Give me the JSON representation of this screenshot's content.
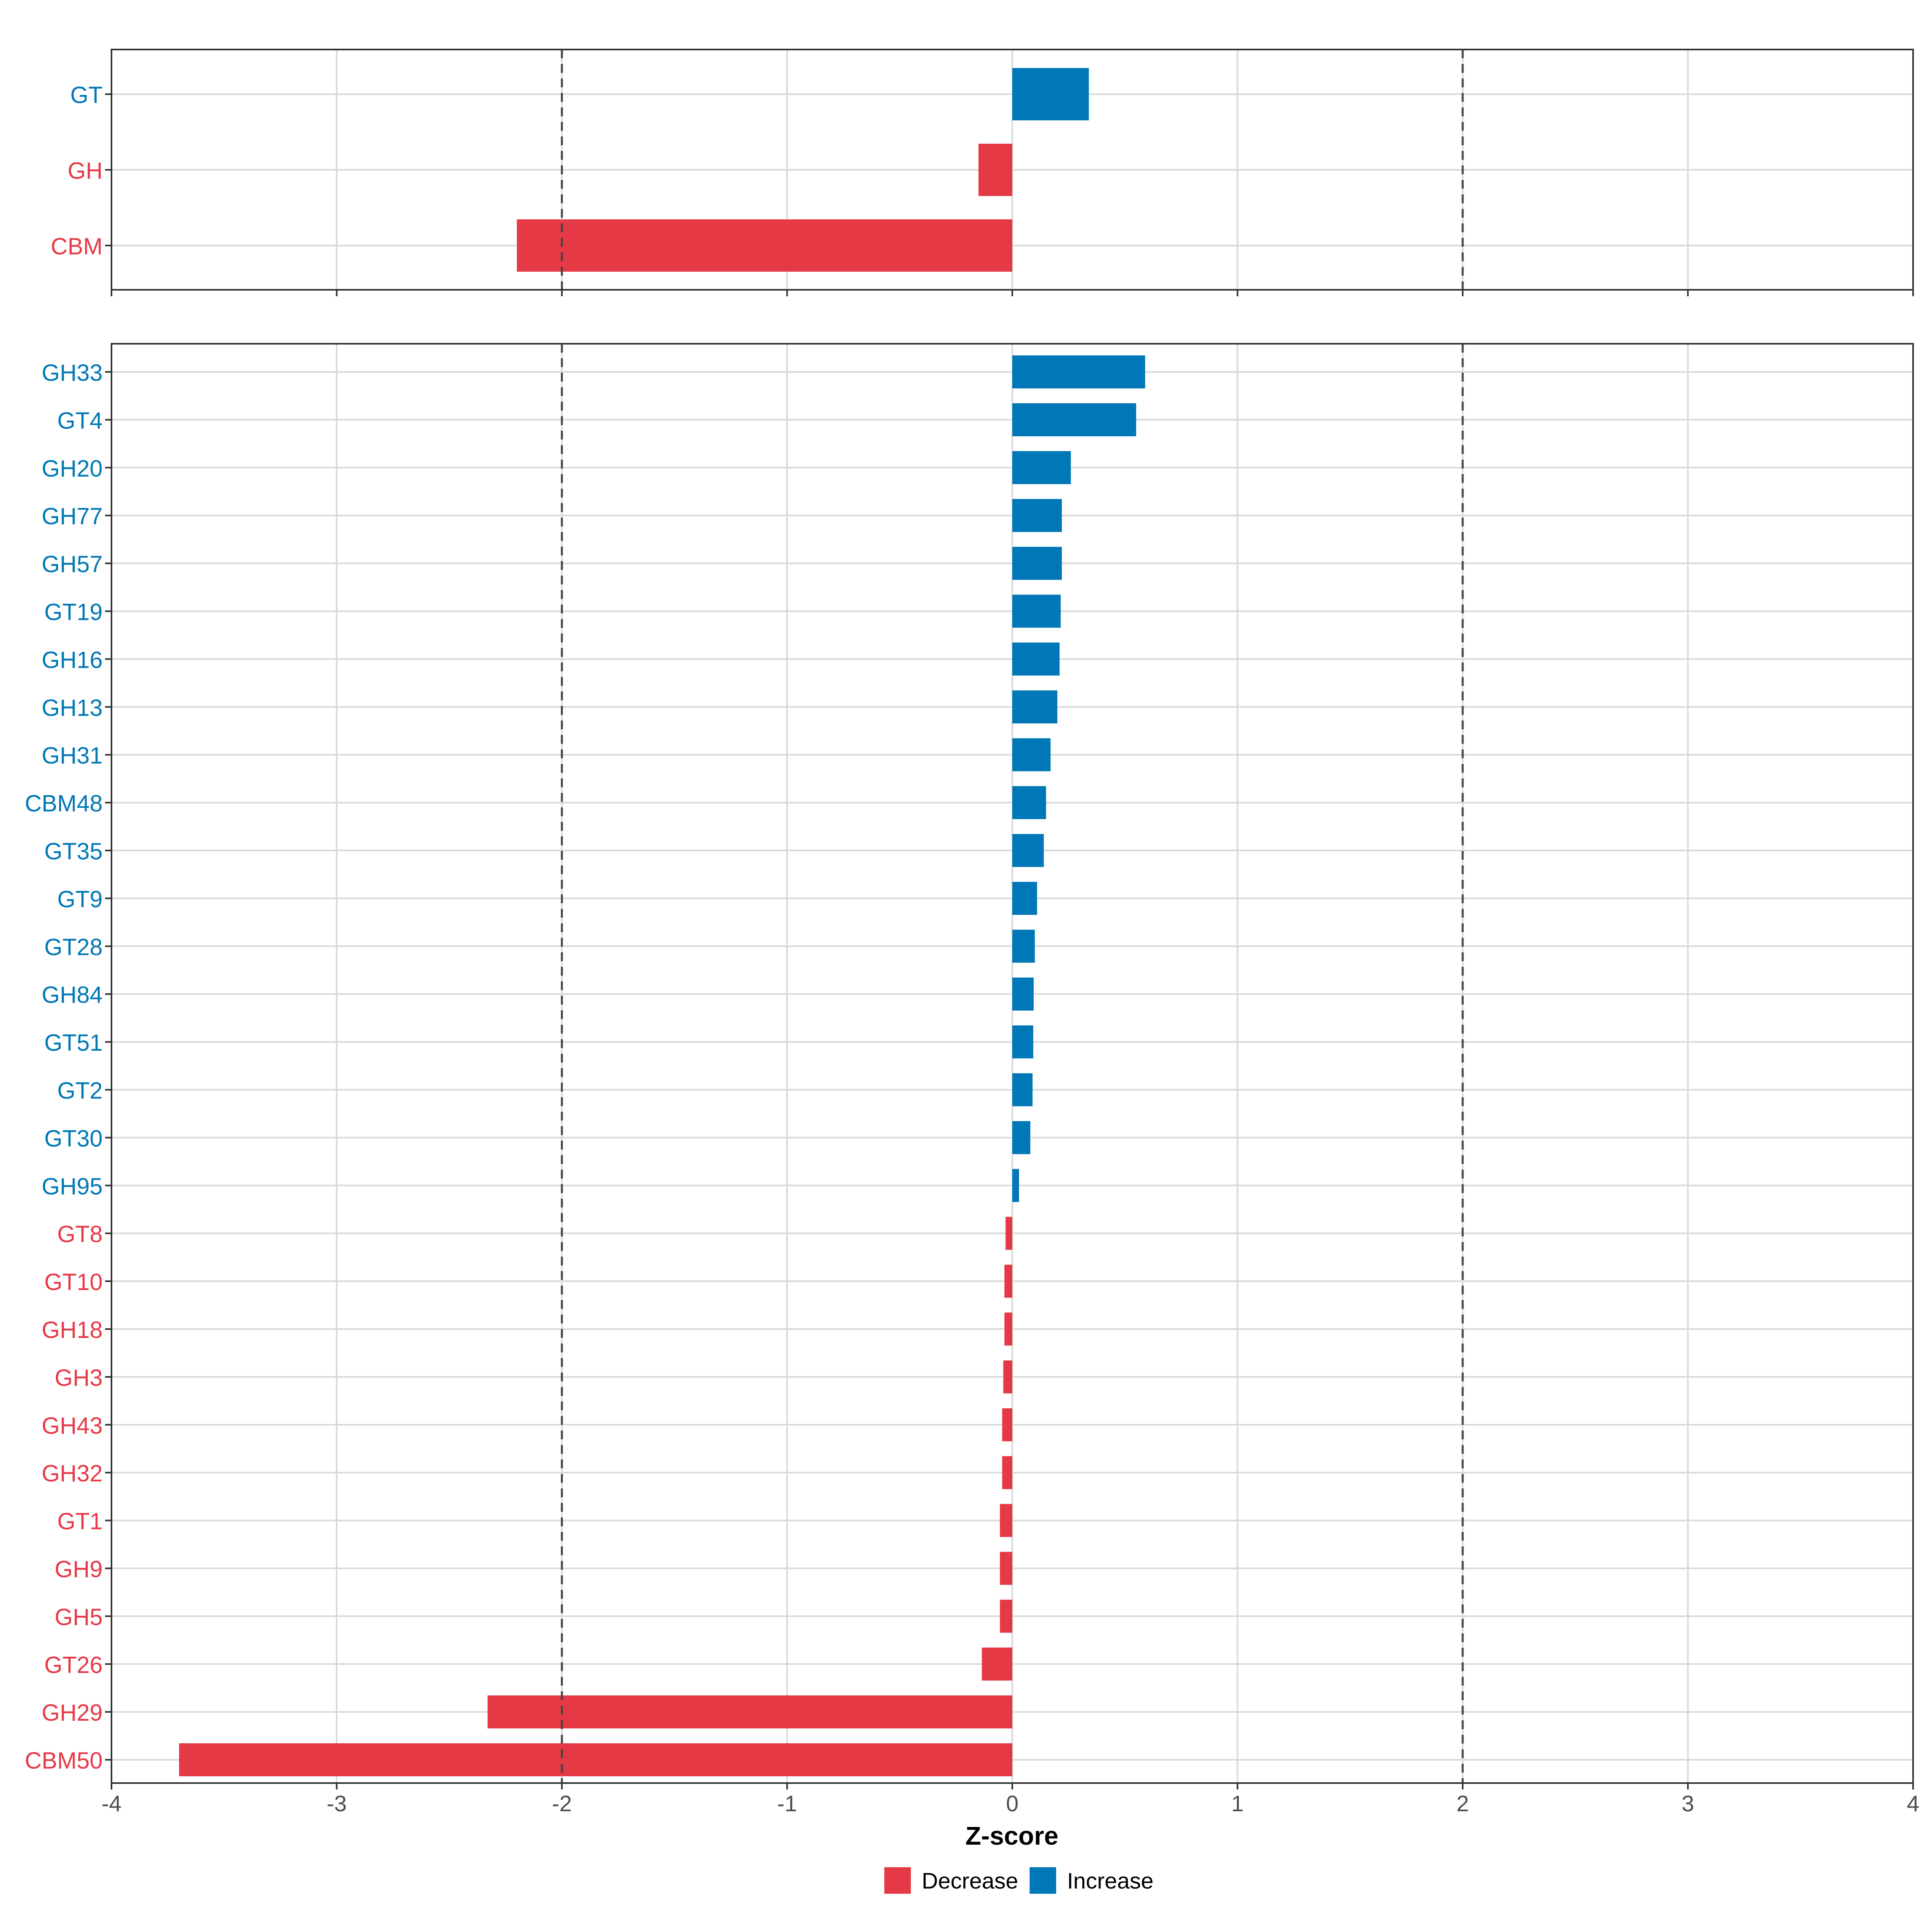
{
  "chart_data": [
    {
      "type": "bar",
      "orientation": "horizontal",
      "panel": "category",
      "categories": [
        "GT",
        "GH",
        "CBM"
      ],
      "values": [
        0.34,
        -0.15,
        -2.2
      ],
      "xlim": [
        -4,
        4
      ],
      "x_ticks": [
        -4,
        -3,
        -2,
        -1,
        0,
        1,
        2,
        3,
        4
      ],
      "x_tick_labels": [],
      "threshold_lines": [
        -2,
        2
      ],
      "grid": true
    },
    {
      "type": "bar",
      "orientation": "horizontal",
      "panel": "family",
      "categories": [
        "GH33",
        "GT4",
        "GH20",
        "GH77",
        "GH57",
        "GT19",
        "GH16",
        "GH13",
        "GH31",
        "CBM48",
        "GT35",
        "GT9",
        "GT28",
        "GH84",
        "GT51",
        "GT2",
        "GT30",
        "GH95",
        "GT8",
        "GT10",
        "GH18",
        "GH3",
        "GH43",
        "GH32",
        "GT1",
        "GH9",
        "GH5",
        "GT26",
        "GH29",
        "CBM50"
      ],
      "values": [
        0.59,
        0.55,
        0.26,
        0.22,
        0.22,
        0.215,
        0.21,
        0.2,
        0.17,
        0.15,
        0.14,
        0.11,
        0.1,
        0.095,
        0.093,
        0.09,
        0.08,
        0.03,
        -0.03,
        -0.035,
        -0.035,
        -0.04,
        -0.045,
        -0.045,
        -0.055,
        -0.055,
        -0.055,
        -0.135,
        -2.33,
        -3.7
      ],
      "xlim": [
        -4,
        4
      ],
      "x_ticks": [
        -4,
        -3,
        -2,
        -1,
        0,
        1,
        2,
        3,
        4
      ],
      "x_tick_labels": [
        "-4",
        "-3",
        "-2",
        "-1",
        "0",
        "1",
        "2",
        "3",
        "4"
      ],
      "xlabel": "Z-score",
      "threshold_lines": [
        -2,
        2
      ],
      "grid": true
    }
  ],
  "legend": {
    "placement": "bottom-center",
    "items": [
      {
        "label": "Decrease",
        "color": "#E63946"
      },
      {
        "label": "Increase",
        "color": "#0077B6"
      }
    ]
  },
  "colors": {
    "decrease": "#E63946",
    "increase": "#0077B6",
    "grid": "#d9d9d9",
    "border": "#333333",
    "threshold": "#444444"
  }
}
